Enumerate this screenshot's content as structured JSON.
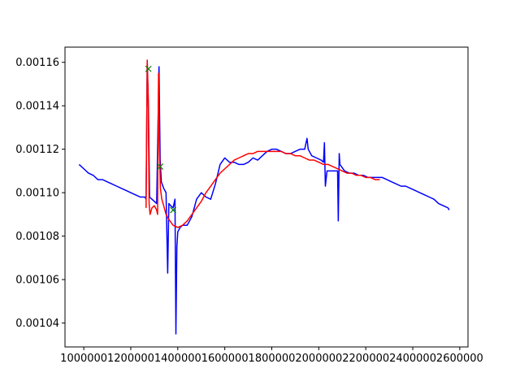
{
  "chart_data": {
    "type": "line",
    "xlim": [
      920000,
      2635000
    ],
    "ylim": [
      0.001029,
      0.001167
    ],
    "x_ticks": [
      1000000,
      1200000,
      1400000,
      1600000,
      1800000,
      2000000,
      2200000,
      2400000,
      2600000
    ],
    "x_tick_labels": [
      "1000000",
      "1200000",
      "1400000",
      "1600000",
      "1800000",
      "2000000",
      "2200000",
      "2400000",
      "2600000"
    ],
    "y_ticks": [
      0.00104,
      0.00106,
      0.00108,
      0.0011,
      0.00112,
      0.00114,
      0.00116
    ],
    "y_tick_labels": [
      "0.00104",
      "0.00106",
      "0.00108",
      "0.00110",
      "0.00112",
      "0.00114",
      "0.00116"
    ],
    "grid": false,
    "series": [
      {
        "color": "#0000ff",
        "style": "line",
        "points": [
          [
            980000,
            0.001113
          ],
          [
            1000000,
            0.001111
          ],
          [
            1020000,
            0.001109
          ],
          [
            1040000,
            0.001108
          ],
          [
            1060000,
            0.001106
          ],
          [
            1080000,
            0.001106
          ],
          [
            1100000,
            0.001105
          ],
          [
            1120000,
            0.001104
          ],
          [
            1140000,
            0.001103
          ],
          [
            1160000,
            0.001102
          ],
          [
            1180000,
            0.001101
          ],
          [
            1200000,
            0.0011
          ],
          [
            1220000,
            0.001099
          ],
          [
            1240000,
            0.001098
          ],
          [
            1260000,
            0.001098
          ],
          [
            1265000,
            0.001097
          ],
          [
            1270000,
            0.00116
          ],
          [
            1275000,
            0.00114
          ],
          [
            1280000,
            0.001098
          ],
          [
            1290000,
            0.001097
          ],
          [
            1300000,
            0.001096
          ],
          [
            1310000,
            0.001095
          ],
          [
            1320000,
            0.001158
          ],
          [
            1325000,
            0.001115
          ],
          [
            1330000,
            0.001105
          ],
          [
            1340000,
            0.001102
          ],
          [
            1350000,
            0.0011
          ],
          [
            1357000,
            0.001063
          ],
          [
            1362000,
            0.001095
          ],
          [
            1370000,
            0.001094
          ],
          [
            1380000,
            0.001093
          ],
          [
            1388000,
            0.001097
          ],
          [
            1392000,
            0.001035
          ],
          [
            1396000,
            0.001075
          ],
          [
            1400000,
            0.001082
          ],
          [
            1410000,
            0.001084
          ],
          [
            1420000,
            0.001085
          ],
          [
            1440000,
            0.001085
          ],
          [
            1460000,
            0.001089
          ],
          [
            1480000,
            0.001097
          ],
          [
            1500000,
            0.0011
          ],
          [
            1520000,
            0.001098
          ],
          [
            1540000,
            0.001097
          ],
          [
            1560000,
            0.001104
          ],
          [
            1580000,
            0.001113
          ],
          [
            1600000,
            0.001116
          ],
          [
            1620000,
            0.001114
          ],
          [
            1640000,
            0.001114
          ],
          [
            1660000,
            0.001113
          ],
          [
            1680000,
            0.001113
          ],
          [
            1700000,
            0.001114
          ],
          [
            1720000,
            0.001116
          ],
          [
            1740000,
            0.001115
          ],
          [
            1760000,
            0.001117
          ],
          [
            1780000,
            0.001119
          ],
          [
            1800000,
            0.00112
          ],
          [
            1820000,
            0.00112
          ],
          [
            1840000,
            0.001119
          ],
          [
            1860000,
            0.001118
          ],
          [
            1880000,
            0.001118
          ],
          [
            1900000,
            0.001119
          ],
          [
            1920000,
            0.00112
          ],
          [
            1940000,
            0.00112
          ],
          [
            1950000,
            0.001125
          ],
          [
            1955000,
            0.00112
          ],
          [
            1970000,
            0.001117
          ],
          [
            1990000,
            0.001116
          ],
          [
            2010000,
            0.001115
          ],
          [
            2020000,
            0.001114
          ],
          [
            2024000,
            0.001123
          ],
          [
            2028000,
            0.001103
          ],
          [
            2035000,
            0.00111
          ],
          [
            2050000,
            0.00111
          ],
          [
            2070000,
            0.00111
          ],
          [
            2080000,
            0.00111
          ],
          [
            2083000,
            0.001087
          ],
          [
            2087000,
            0.001118
          ],
          [
            2090000,
            0.001113
          ],
          [
            2110000,
            0.00111
          ],
          [
            2130000,
            0.001109
          ],
          [
            2150000,
            0.001109
          ],
          [
            2170000,
            0.001108
          ],
          [
            2190000,
            0.001108
          ],
          [
            2210000,
            0.001107
          ],
          [
            2230000,
            0.001107
          ],
          [
            2250000,
            0.001107
          ],
          [
            2270000,
            0.001107
          ],
          [
            2290000,
            0.001106
          ],
          [
            2310000,
            0.001105
          ],
          [
            2330000,
            0.001104
          ],
          [
            2350000,
            0.001103
          ],
          [
            2370000,
            0.001103
          ],
          [
            2390000,
            0.001102
          ],
          [
            2410000,
            0.001101
          ],
          [
            2430000,
            0.0011
          ],
          [
            2450000,
            0.001099
          ],
          [
            2470000,
            0.001098
          ],
          [
            2490000,
            0.001097
          ],
          [
            2510000,
            0.001095
          ],
          [
            2530000,
            0.001094
          ],
          [
            2550000,
            0.001093
          ],
          [
            2555000,
            0.001092
          ]
        ]
      },
      {
        "color": "#ff0000",
        "style": "line",
        "points": [
          [
            1265000,
            0.001093
          ],
          [
            1270000,
            0.001161
          ],
          [
            1274000,
            0.001145
          ],
          [
            1278000,
            0.001095
          ],
          [
            1282000,
            0.00109
          ],
          [
            1290000,
            0.001093
          ],
          [
            1300000,
            0.001094
          ],
          [
            1310000,
            0.001092
          ],
          [
            1314000,
            0.00109
          ],
          [
            1318000,
            0.001155
          ],
          [
            1322000,
            0.00112
          ],
          [
            1326000,
            0.001102
          ],
          [
            1332000,
            0.001097
          ],
          [
            1340000,
            0.001094
          ],
          [
            1350000,
            0.00109
          ],
          [
            1360000,
            0.001088
          ],
          [
            1380000,
            0.001085
          ],
          [
            1400000,
            0.001084
          ],
          [
            1420000,
            0.001085
          ],
          [
            1440000,
            0.001087
          ],
          [
            1460000,
            0.00109
          ],
          [
            1480000,
            0.001093
          ],
          [
            1500000,
            0.001096
          ],
          [
            1520000,
            0.0011
          ],
          [
            1540000,
            0.001103
          ],
          [
            1560000,
            0.001106
          ],
          [
            1580000,
            0.001109
          ],
          [
            1600000,
            0.001111
          ],
          [
            1620000,
            0.001113
          ],
          [
            1640000,
            0.001115
          ],
          [
            1660000,
            0.001116
          ],
          [
            1680000,
            0.001117
          ],
          [
            1700000,
            0.001118
          ],
          [
            1720000,
            0.001118
          ],
          [
            1740000,
            0.001119
          ],
          [
            1760000,
            0.001119
          ],
          [
            1780000,
            0.001119
          ],
          [
            1800000,
            0.001119
          ],
          [
            1820000,
            0.001119
          ],
          [
            1840000,
            0.001119
          ],
          [
            1860000,
            0.001118
          ],
          [
            1880000,
            0.001118
          ],
          [
            1900000,
            0.001117
          ],
          [
            1920000,
            0.001117
          ],
          [
            1940000,
            0.001116
          ],
          [
            1960000,
            0.001115
          ],
          [
            1980000,
            0.001115
          ],
          [
            2000000,
            0.001114
          ],
          [
            2020000,
            0.001113
          ],
          [
            2040000,
            0.001113
          ],
          [
            2060000,
            0.001112
          ],
          [
            2080000,
            0.001111
          ],
          [
            2100000,
            0.00111
          ],
          [
            2120000,
            0.001109
          ],
          [
            2140000,
            0.001109
          ],
          [
            2160000,
            0.001108
          ],
          [
            2180000,
            0.001108
          ],
          [
            2200000,
            0.001107
          ],
          [
            2220000,
            0.001107
          ],
          [
            2240000,
            0.001106
          ],
          [
            2260000,
            0.001106
          ]
        ]
      },
      {
        "color": "#008000",
        "style": "markers",
        "marker": "x",
        "points": [
          [
            1275000,
            0.001157
          ],
          [
            1325000,
            0.001112
          ],
          [
            1380000,
            0.001092
          ]
        ]
      }
    ]
  }
}
